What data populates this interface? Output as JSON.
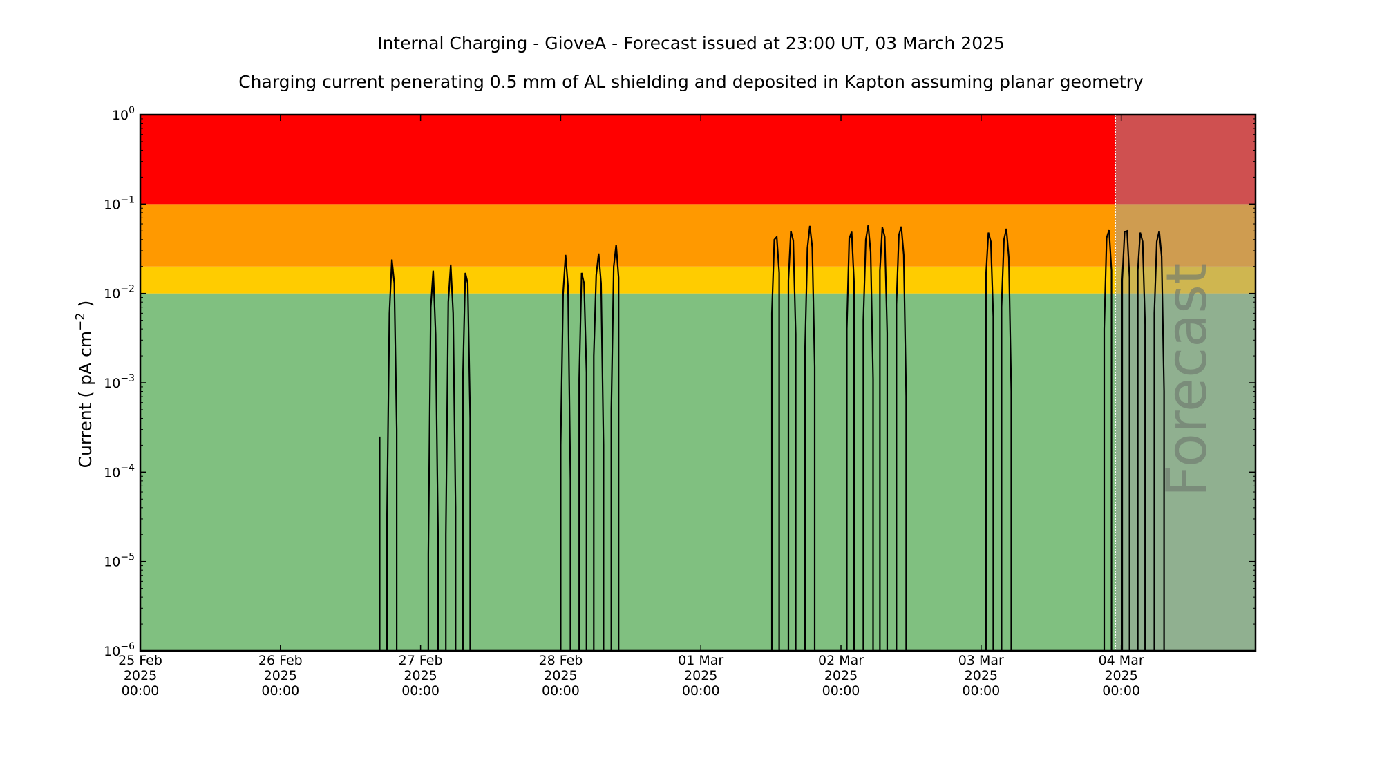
{
  "chart_data": {
    "type": "line",
    "title": "Internal Charging - GioveA - Forecast issued at 23:00 UT, 03 March 2025",
    "subtitle": "Charging current penerating 0.5 mm of AL shielding and deposited in Kapton assuming planar geometry",
    "ylabel": "Current ( pA cm",
    "ylabel_exp": "−2",
    "ylabel_close": " )",
    "yscale": "log",
    "ylim": [
      1e-06,
      1
    ],
    "xlim": [
      "2025-02-25T00:00",
      "2025-03-04T23:00"
    ],
    "y_ticks": [
      {
        "value": 1e-06,
        "base": "10",
        "exp": "−6"
      },
      {
        "value": 1e-05,
        "base": "10",
        "exp": "−5"
      },
      {
        "value": 0.0001,
        "base": "10",
        "exp": "−4"
      },
      {
        "value": 0.001,
        "base": "10",
        "exp": "−3"
      },
      {
        "value": 0.01,
        "base": "10",
        "exp": "−2"
      },
      {
        "value": 0.1,
        "base": "10",
        "exp": "−1"
      },
      {
        "value": 1,
        "base": "10",
        "exp": "0"
      }
    ],
    "x_ticks": [
      {
        "value": "2025-02-25T00:00",
        "line1": "25 Feb",
        "line2": "2025",
        "line3": "00:00"
      },
      {
        "value": "2025-02-26T00:00",
        "line1": "26 Feb",
        "line2": "2025",
        "line3": "00:00"
      },
      {
        "value": "2025-02-27T00:00",
        "line1": "27 Feb",
        "line2": "2025",
        "line3": "00:00"
      },
      {
        "value": "2025-02-28T00:00",
        "line1": "28 Feb",
        "line2": "2025",
        "line3": "00:00"
      },
      {
        "value": "2025-03-01T00:00",
        "line1": "01 Mar",
        "line2": "2025",
        "line3": "00:00"
      },
      {
        "value": "2025-03-02T00:00",
        "line1": "02 Mar",
        "line2": "2025",
        "line3": "00:00"
      },
      {
        "value": "2025-03-03T00:00",
        "line1": "03 Mar",
        "line2": "2025",
        "line3": "00:00"
      },
      {
        "value": "2025-03-04T00:00",
        "line1": "04 Mar",
        "line2": "2025",
        "line3": "00:00"
      }
    ],
    "bands": [
      {
        "from": 1e-06,
        "to": 0.01,
        "color": "#80c080"
      },
      {
        "from": 0.01,
        "to": 0.02,
        "color": "#ffcc00"
      },
      {
        "from": 0.02,
        "to": 0.1,
        "color": "#ff9900"
      },
      {
        "from": 0.1,
        "to": 1,
        "color": "#ff0000"
      }
    ],
    "forecast_start": "2025-03-03T23:00",
    "forecast_label": "Forecast",
    "forecast_overlay_color": "#a0a0a0",
    "line_color": "#000000",
    "series": [
      {
        "points": [
          [
            "2025-02-26T17:00",
            1e-06
          ],
          [
            "2025-02-26T17:00",
            0.00025
          ],
          [
            "2025-02-26T17:00",
            1e-06
          ],
          [
            "2025-02-26T18:15",
            1e-06
          ],
          [
            "2025-02-26T18:15",
            3e-05
          ],
          [
            "2025-02-26T18:40",
            0.006
          ],
          [
            "2025-02-26T19:05",
            0.024
          ],
          [
            "2025-02-26T19:30",
            0.013
          ],
          [
            "2025-02-26T19:55",
            0.0003
          ],
          [
            "2025-02-26T19:55",
            1e-06
          ],
          [
            "2025-02-27T01:20",
            1e-06
          ],
          [
            "2025-02-27T01:20",
            1.2e-05
          ],
          [
            "2025-02-27T01:45",
            0.007
          ],
          [
            "2025-02-27T02:10",
            0.018
          ],
          [
            "2025-02-27T02:35",
            0.0035
          ],
          [
            "2025-02-27T03:00",
            2e-05
          ],
          [
            "2025-02-27T03:00",
            1e-06
          ],
          [
            "2025-02-27T04:20",
            1e-06
          ],
          [
            "2025-02-27T04:20",
            2e-05
          ],
          [
            "2025-02-27T04:45",
            0.008
          ],
          [
            "2025-02-27T05:10",
            0.021
          ],
          [
            "2025-02-27T05:35",
            0.006
          ],
          [
            "2025-02-27T06:00",
            4e-05
          ],
          [
            "2025-02-27T06:00",
            1e-06
          ],
          [
            "2025-02-27T07:15",
            1e-06
          ],
          [
            "2025-02-27T07:15",
            0.0011
          ],
          [
            "2025-02-27T07:40",
            0.017
          ],
          [
            "2025-02-27T08:05",
            0.013
          ],
          [
            "2025-02-27T08:30",
            0.0004
          ],
          [
            "2025-02-27T08:30",
            1e-06
          ],
          [
            "2025-02-28T00:00",
            1e-06
          ],
          [
            "2025-02-28T00:00",
            0.0002
          ],
          [
            "2025-02-28T00:25",
            0.01
          ],
          [
            "2025-02-28T00:50",
            0.027
          ],
          [
            "2025-02-28T01:15",
            0.012
          ],
          [
            "2025-02-28T01:40",
            8e-05
          ],
          [
            "2025-02-28T01:40",
            1e-06
          ],
          [
            "2025-02-28T03:10",
            1e-06
          ],
          [
            "2025-02-28T03:10",
            0.0011
          ],
          [
            "2025-02-28T03:35",
            0.017
          ],
          [
            "2025-02-28T04:00",
            0.013
          ],
          [
            "2025-02-28T04:25",
            0.0013
          ],
          [
            "2025-02-28T04:25",
            1e-06
          ],
          [
            "2025-02-28T05:40",
            1e-06
          ],
          [
            "2025-02-28T05:40",
            0.002
          ],
          [
            "2025-02-28T06:05",
            0.016
          ],
          [
            "2025-02-28T06:30",
            0.028
          ],
          [
            "2025-02-28T06:55",
            0.013
          ],
          [
            "2025-02-28T07:20",
            0.0002
          ],
          [
            "2025-02-28T07:20",
            1e-06
          ],
          [
            "2025-02-28T08:40",
            1e-06
          ],
          [
            "2025-02-28T08:40",
            0.0005
          ],
          [
            "2025-02-28T09:05",
            0.02
          ],
          [
            "2025-02-28T09:30",
            0.035
          ],
          [
            "2025-02-28T09:55",
            0.015
          ],
          [
            "2025-02-28T09:55",
            1e-06
          ],
          [
            "2025-03-01T12:10",
            1e-06
          ],
          [
            "2025-03-01T12:10",
            0.006
          ],
          [
            "2025-03-01T12:35",
            0.04
          ],
          [
            "2025-03-01T13:00",
            0.043
          ],
          [
            "2025-03-01T13:25",
            0.017
          ],
          [
            "2025-03-01T13:25",
            1e-06
          ],
          [
            "2025-03-01T15:00",
            1e-06
          ],
          [
            "2025-03-01T15:00",
            0.014
          ],
          [
            "2025-03-01T15:25",
            0.05
          ],
          [
            "2025-03-01T15:50",
            0.039
          ],
          [
            "2025-03-01T16:15",
            0.0035
          ],
          [
            "2025-03-01T16:15",
            1e-06
          ],
          [
            "2025-03-01T17:50",
            1e-06
          ],
          [
            "2025-03-01T17:50",
            0.0022
          ],
          [
            "2025-03-01T18:15",
            0.032
          ],
          [
            "2025-03-01T18:40",
            0.057
          ],
          [
            "2025-03-01T19:05",
            0.033
          ],
          [
            "2025-03-01T19:30",
            0.0015
          ],
          [
            "2025-03-01T19:30",
            1e-06
          ],
          [
            "2025-03-02T01:00",
            1e-06
          ],
          [
            "2025-03-02T01:00",
            0.004
          ],
          [
            "2025-03-02T01:25",
            0.041
          ],
          [
            "2025-03-02T01:50",
            0.049
          ],
          [
            "2025-03-02T02:15",
            0.013
          ],
          [
            "2025-03-02T02:15",
            1e-06
          ],
          [
            "2025-03-02T03:50",
            1e-06
          ],
          [
            "2025-03-02T03:50",
            0.005
          ],
          [
            "2025-03-02T04:15",
            0.04
          ],
          [
            "2025-03-02T04:40",
            0.058
          ],
          [
            "2025-03-02T05:05",
            0.029
          ],
          [
            "2025-03-02T05:30",
            0.0011
          ],
          [
            "2025-03-02T05:30",
            1e-06
          ],
          [
            "2025-03-02T06:40",
            1e-06
          ],
          [
            "2025-03-02T06:40",
            0.018
          ],
          [
            "2025-03-02T07:05",
            0.055
          ],
          [
            "2025-03-02T07:30",
            0.043
          ],
          [
            "2025-03-02T07:55",
            0.0036
          ],
          [
            "2025-03-02T07:55",
            1e-06
          ],
          [
            "2025-03-02T09:30",
            1e-06
          ],
          [
            "2025-03-02T09:30",
            0.0075
          ],
          [
            "2025-03-02T09:55",
            0.045
          ],
          [
            "2025-03-02T10:20",
            0.056
          ],
          [
            "2025-03-02T10:45",
            0.027
          ],
          [
            "2025-03-02T11:10",
            0.0007
          ],
          [
            "2025-03-02T11:10",
            1e-06
          ],
          [
            "2025-03-03T00:50",
            1e-06
          ],
          [
            "2025-03-03T00:50",
            0.016
          ],
          [
            "2025-03-03T01:15",
            0.048
          ],
          [
            "2025-03-03T01:40",
            0.038
          ],
          [
            "2025-03-03T02:05",
            0.0055
          ],
          [
            "2025-03-03T02:05",
            1e-06
          ],
          [
            "2025-03-03T03:30",
            1e-06
          ],
          [
            "2025-03-03T03:30",
            0.007
          ],
          [
            "2025-03-03T03:55",
            0.04
          ],
          [
            "2025-03-03T04:20",
            0.053
          ],
          [
            "2025-03-03T04:45",
            0.025
          ],
          [
            "2025-03-03T05:10",
            0.0008
          ],
          [
            "2025-03-03T05:10",
            1e-06
          ],
          [
            "2025-03-03T21:05",
            1e-06
          ],
          [
            "2025-03-03T21:05",
            0.004
          ],
          [
            "2025-03-03T21:30",
            0.042
          ],
          [
            "2025-03-03T21:55",
            0.051
          ],
          [
            "2025-03-03T22:20",
            0.018
          ],
          [
            "2025-03-03T22:20",
            1e-06
          ],
          [
            "2025-03-04T00:10",
            1e-06
          ],
          [
            "2025-03-04T00:10",
            0.014
          ],
          [
            "2025-03-04T00:35",
            0.049
          ],
          [
            "2025-03-04T01:00",
            0.05
          ],
          [
            "2025-03-04T01:25",
            0.015
          ],
          [
            "2025-03-04T01:25",
            1e-06
          ],
          [
            "2025-03-04T02:50",
            1e-06
          ],
          [
            "2025-03-04T02:50",
            0.018
          ],
          [
            "2025-03-04T03:15",
            0.048
          ],
          [
            "2025-03-04T03:40",
            0.038
          ],
          [
            "2025-03-04T04:05",
            0.0045
          ],
          [
            "2025-03-04T04:05",
            1e-06
          ],
          [
            "2025-03-04T05:40",
            1e-06
          ],
          [
            "2025-03-04T05:40",
            0.006
          ],
          [
            "2025-03-04T06:05",
            0.038
          ],
          [
            "2025-03-04T06:30",
            0.05
          ],
          [
            "2025-03-04T06:55",
            0.026
          ],
          [
            "2025-03-04T07:20",
            0.0008
          ],
          [
            "2025-03-04T07:20",
            1e-06
          ]
        ]
      }
    ]
  }
}
